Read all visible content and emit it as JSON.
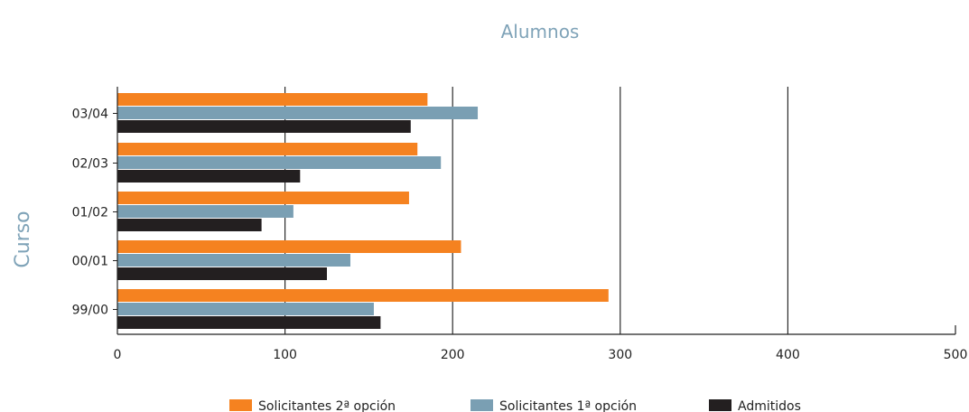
{
  "chart_data": {
    "type": "bar",
    "orientation": "horizontal",
    "title": "Alumnos",
    "xlabel": "",
    "ylabel": "Curso",
    "xlim": [
      0,
      500
    ],
    "xticks": [
      "0",
      "100",
      "200",
      "300",
      "400",
      "500"
    ],
    "categories": [
      "03/04",
      "02/03",
      "01/02",
      "00/01",
      "99/00"
    ],
    "series": [
      {
        "name": "Solicitantes 2ª opción",
        "color": "#f58220",
        "values": [
          185,
          179,
          174,
          205,
          293
        ]
      },
      {
        "name": "Solicitantes 1ª opción",
        "color": "#7a9fb3",
        "values": [
          215,
          193,
          105,
          139,
          153
        ]
      },
      {
        "name": "Admitidos",
        "color": "#231f20",
        "values": [
          175,
          109,
          86,
          125,
          157
        ]
      }
    ],
    "grid": "vertical",
    "legend": "bottom"
  }
}
